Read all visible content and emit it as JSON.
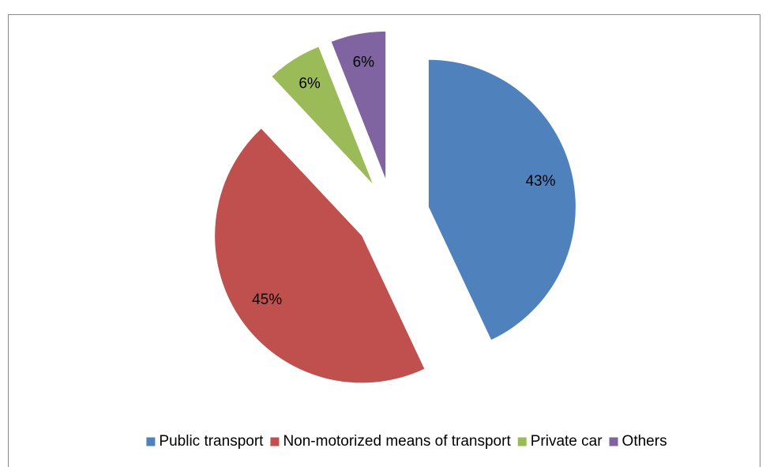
{
  "chart_data": {
    "type": "pie",
    "categories": [
      "Public transport",
      "Non-motorized means of transport",
      "Private car",
      "Others"
    ],
    "values": [
      43,
      45,
      6,
      6
    ],
    "value_labels": [
      "43%",
      "45%",
      "6%",
      "6%"
    ],
    "colors": [
      "#4f81bd",
      "#c0504d",
      "#9bbb59",
      "#8064a2"
    ],
    "exploded": true,
    "legend": "bottom"
  }
}
